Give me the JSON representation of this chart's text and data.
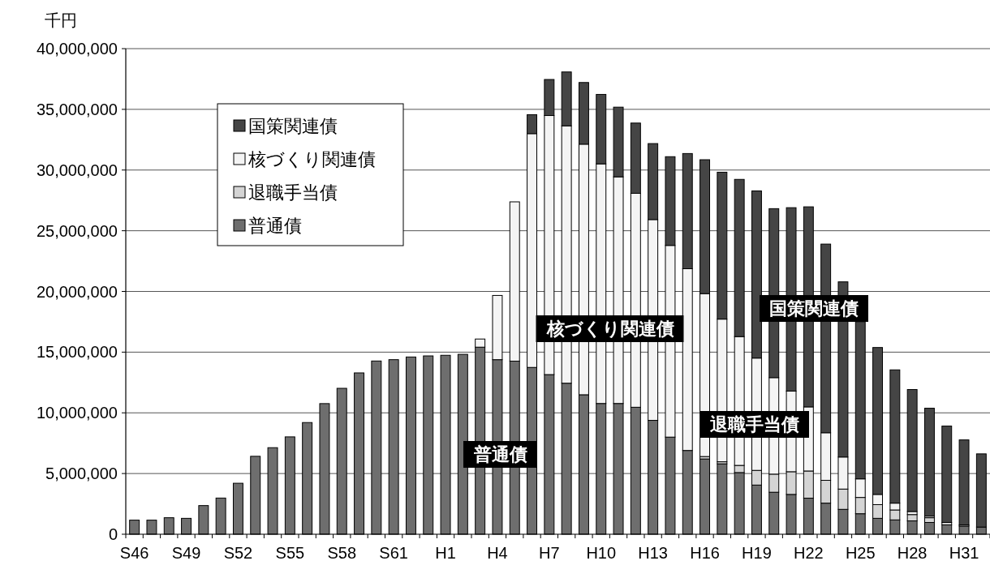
{
  "chart_data": {
    "type": "bar",
    "stacked": true,
    "ylabel": "千円",
    "categories": [
      "S46",
      null,
      null,
      "S49",
      null,
      null,
      "S52",
      null,
      null,
      "S55",
      null,
      null,
      "S58",
      null,
      null,
      "S61",
      null,
      null,
      "H1",
      null,
      null,
      "H4",
      null,
      null,
      "H7",
      null,
      null,
      "H10",
      null,
      null,
      "H13",
      null,
      null,
      "H16",
      null,
      null,
      "H19",
      null,
      null,
      "H22",
      null,
      null,
      "H25",
      null,
      null,
      "H28",
      null,
      null,
      "H31",
      null
    ],
    "series": [
      {
        "name": "普通債",
        "color": "#6e6e6e",
        "values": [
          1160000,
          1160000,
          1360000,
          1310000,
          2360000,
          2980000,
          4200000,
          6420000,
          7130000,
          8020000,
          9200000,
          10760000,
          12020000,
          13290000,
          14270000,
          14380000,
          14600000,
          14690000,
          14740000,
          14820000,
          15410000,
          14380000,
          14260000,
          13740000,
          13150000,
          12440000,
          11490000,
          10770000,
          10770000,
          10460000,
          9380000,
          8000000,
          6900000,
          6200000,
          5800000,
          5080000,
          4050000,
          3460000,
          3280000,
          2970000,
          2560000,
          2050000,
          1690000,
          1310000,
          1180000,
          1100000,
          970000,
          770000,
          670000,
          590000
        ]
      },
      {
        "name": "退職手当債",
        "color": "#d4d4d4",
        "values": [
          0,
          0,
          0,
          0,
          0,
          0,
          0,
          0,
          0,
          0,
          0,
          0,
          0,
          0,
          0,
          0,
          0,
          0,
          0,
          0,
          0,
          0,
          0,
          0,
          0,
          0,
          0,
          0,
          0,
          0,
          0,
          0,
          0,
          200000,
          170000,
          590000,
          1210000,
          1490000,
          1870000,
          2240000,
          1880000,
          1670000,
          1340000,
          1130000,
          820000,
          520000,
          390000,
          200000,
          100000,
          0
        ]
      },
      {
        "name": "核づくり関連債",
        "color": "#f4f4f4",
        "values": [
          0,
          0,
          0,
          0,
          0,
          0,
          0,
          0,
          0,
          0,
          0,
          0,
          0,
          0,
          0,
          0,
          0,
          0,
          0,
          0,
          670000,
          5290000,
          13120000,
          19260000,
          21340000,
          21200000,
          20640000,
          19740000,
          18670000,
          17620000,
          16540000,
          15790000,
          14970000,
          13420000,
          11750000,
          10610000,
          9250000,
          7950000,
          6640000,
          5280000,
          3920000,
          2640000,
          1530000,
          840000,
          560000,
          250000,
          130000,
          null,
          null,
          0
        ]
      },
      {
        "name": "国策関連債",
        "color": "#454545",
        "values": [
          0,
          0,
          0,
          0,
          0,
          0,
          0,
          0,
          0,
          0,
          0,
          0,
          0,
          0,
          0,
          0,
          0,
          0,
          0,
          0,
          0,
          0,
          0,
          1560000,
          2970000,
          4440000,
          5080000,
          5720000,
          5740000,
          5790000,
          6260000,
          7310000,
          9490000,
          11030000,
          12100000,
          12950000,
          13770000,
          13920000,
          15110000,
          16480000,
          15540000,
          14430000,
          12950000,
          12100000,
          10980000,
          10050000,
          8890000,
          7940000,
          7000000,
          6030000
        ]
      }
    ],
    "ylim": [
      0,
      40000000
    ],
    "yticks": [
      0,
      {
        "value": 5000000,
        "label": "5,000,000"
      },
      {
        "value": 10000000,
        "label": "10,000,000"
      },
      {
        "value": 15000000,
        "label": "15,000,000"
      },
      {
        "value": 20000000,
        "label": "20,000,000"
      },
      {
        "value": 25000000,
        "label": "25,000,000"
      },
      {
        "value": 30000000,
        "label": "30,000,000"
      },
      {
        "value": 35000000,
        "label": "35,000,000"
      },
      {
        "value": 40000000,
        "label": "40,000,000"
      }
    ],
    "grid": "y",
    "legend": "top left",
    "annotations": [
      "普通債",
      "核づくり関連債",
      "退職手当債",
      "国策関連債"
    ]
  }
}
